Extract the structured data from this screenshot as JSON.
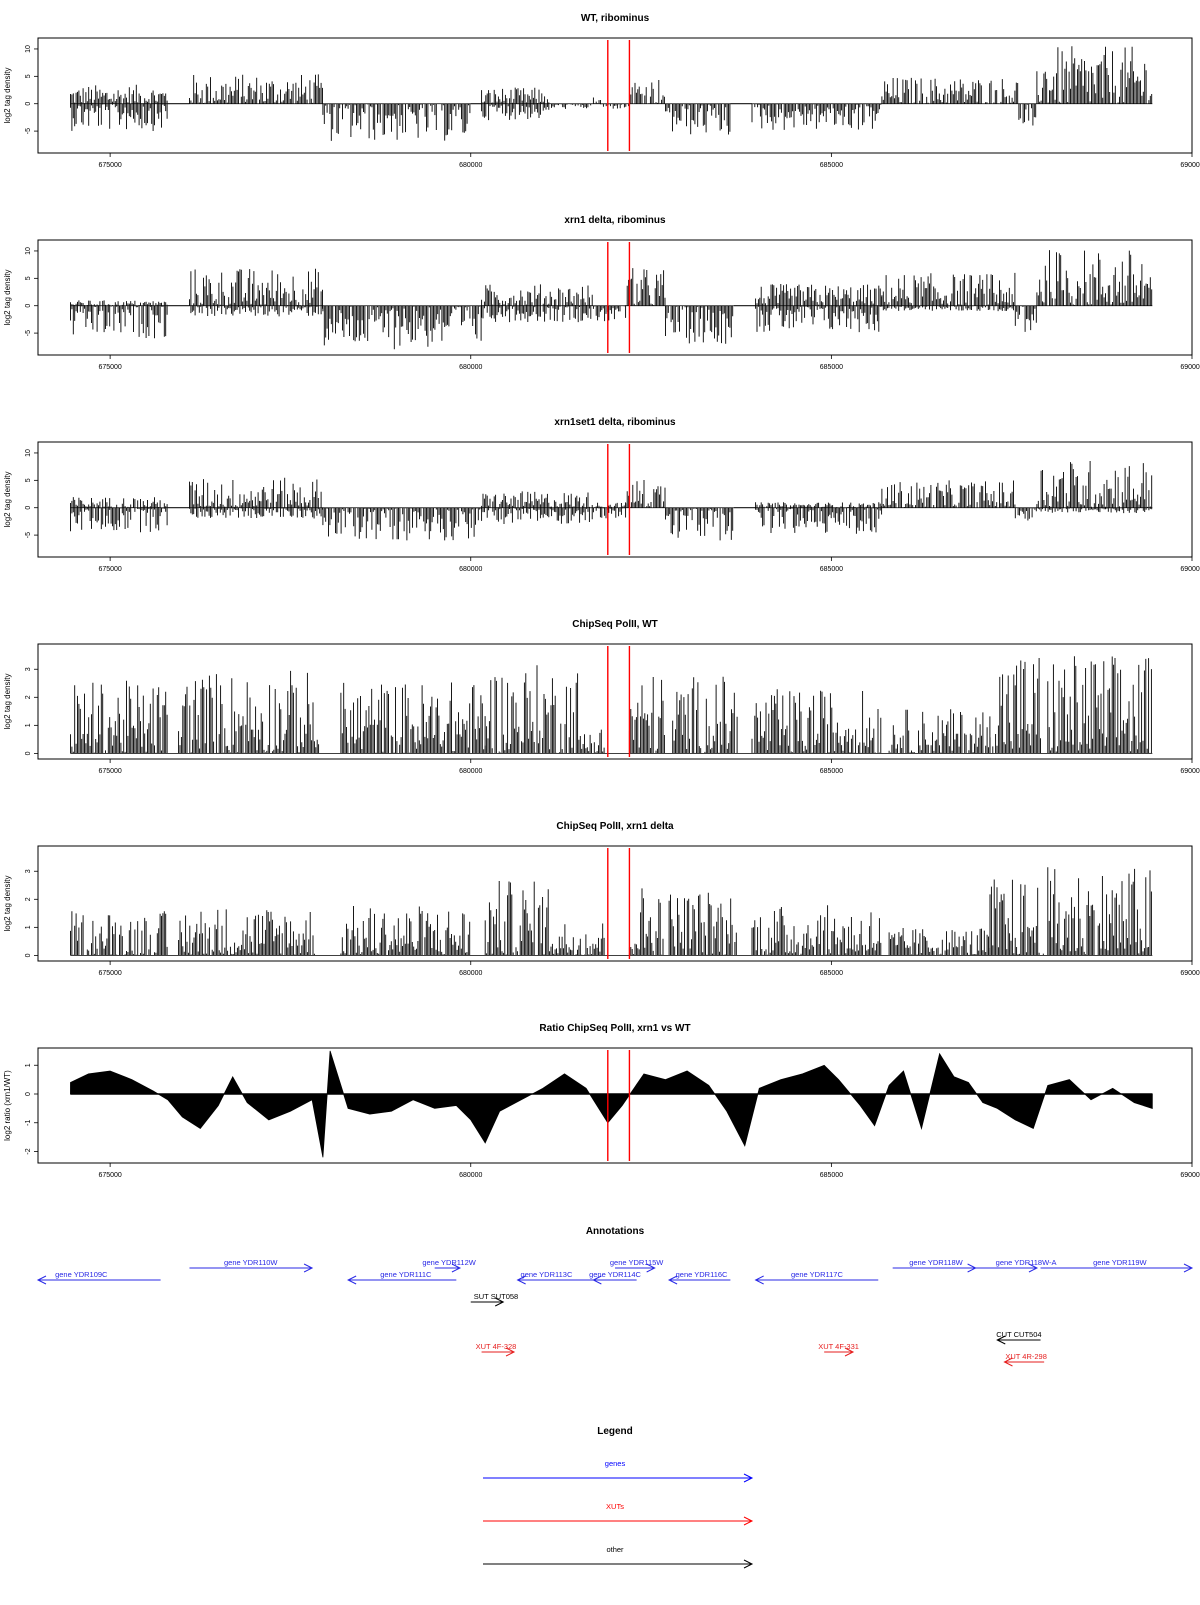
{
  "figure": {
    "annotations_title": "Annotations",
    "legend_title": "Legend",
    "marker_positions": [
      681900,
      682200
    ]
  },
  "chart_data": [
    {
      "type": "bar",
      "title": "WT, ribominus",
      "ylabel": "log2 tag density",
      "xlim": [
        674000,
        690000
      ],
      "ylim": [
        -9,
        12
      ],
      "xticks": [
        675000,
        680000,
        685000,
        690000
      ],
      "yticks": [
        -5,
        0,
        5,
        10
      ],
      "marker_color": "#ff0000",
      "bar_color": "#000000",
      "segments": [
        {
          "x0": 674450,
          "x1": 675800,
          "min": -5,
          "max": 3.5
        },
        {
          "x0": 675800,
          "x1": 676100,
          "min": 0,
          "max": 0
        },
        {
          "x0": 676100,
          "x1": 677950,
          "min": 0,
          "max": 5.5
        },
        {
          "x0": 677950,
          "x1": 680000,
          "min": -7,
          "max": 0
        },
        {
          "x0": 680000,
          "x1": 680150,
          "min": 0,
          "max": 0
        },
        {
          "x0": 680150,
          "x1": 681100,
          "min": -3,
          "max": 3
        },
        {
          "x0": 681100,
          "x1": 681700,
          "min": -1,
          "max": 0
        },
        {
          "x0": 681700,
          "x1": 681800,
          "min": 0,
          "max": 3
        },
        {
          "x0": 681800,
          "x1": 682200,
          "min": -1,
          "max": 0
        },
        {
          "x0": 682200,
          "x1": 682700,
          "min": 0,
          "max": 5
        },
        {
          "x0": 682700,
          "x1": 683600,
          "min": -6,
          "max": 0
        },
        {
          "x0": 683600,
          "x1": 683900,
          "min": 0,
          "max": 0
        },
        {
          "x0": 683900,
          "x1": 685700,
          "min": -5,
          "max": 0
        },
        {
          "x0": 685700,
          "x1": 687600,
          "min": 0,
          "max": 5
        },
        {
          "x0": 687600,
          "x1": 687850,
          "min": -4,
          "max": 0
        },
        {
          "x0": 687850,
          "x1": 689450,
          "min": 0,
          "max": 10.5
        }
      ]
    },
    {
      "type": "bar",
      "title": "xrn1 delta, ribominus",
      "ylabel": "log2 tag density",
      "xlim": [
        674000,
        690000
      ],
      "ylim": [
        -9,
        12
      ],
      "xticks": [
        675000,
        680000,
        685000,
        690000
      ],
      "yticks": [
        -5,
        0,
        5,
        10
      ],
      "marker_color": "#ff0000",
      "bar_color": "#000000",
      "segments": [
        {
          "x0": 674450,
          "x1": 675800,
          "min": -6,
          "max": 1
        },
        {
          "x0": 675800,
          "x1": 676100,
          "min": 0,
          "max": 0
        },
        {
          "x0": 676100,
          "x1": 677950,
          "min": -2,
          "max": 7
        },
        {
          "x0": 677950,
          "x1": 680150,
          "min": -8,
          "max": 0
        },
        {
          "x0": 680150,
          "x1": 681700,
          "min": -3,
          "max": 4
        },
        {
          "x0": 681700,
          "x1": 682150,
          "min": -3,
          "max": 0
        },
        {
          "x0": 682150,
          "x1": 682700,
          "min": 0,
          "max": 7
        },
        {
          "x0": 682700,
          "x1": 683650,
          "min": -7,
          "max": 0
        },
        {
          "x0": 683650,
          "x1": 683950,
          "min": 0,
          "max": 0
        },
        {
          "x0": 683950,
          "x1": 685700,
          "min": -5,
          "max": 4
        },
        {
          "x0": 685700,
          "x1": 687550,
          "min": -1,
          "max": 6
        },
        {
          "x0": 687550,
          "x1": 687850,
          "min": -5,
          "max": 0
        },
        {
          "x0": 687850,
          "x1": 689450,
          "min": 0,
          "max": 10.5
        }
      ]
    },
    {
      "type": "bar",
      "title": "xrn1set1 delta, ribominus",
      "ylabel": "log2 tag density",
      "xlim": [
        674000,
        690000
      ],
      "ylim": [
        -9,
        12
      ],
      "xticks": [
        675000,
        680000,
        685000,
        690000
      ],
      "yticks": [
        -5,
        0,
        5,
        10
      ],
      "marker_color": "#ff0000",
      "bar_color": "#000000",
      "segments": [
        {
          "x0": 674450,
          "x1": 675800,
          "min": -4.5,
          "max": 2
        },
        {
          "x0": 675800,
          "x1": 676100,
          "min": 0,
          "max": 0
        },
        {
          "x0": 676100,
          "x1": 677950,
          "min": -2,
          "max": 5.5
        },
        {
          "x0": 677950,
          "x1": 680150,
          "min": -6,
          "max": 0
        },
        {
          "x0": 680150,
          "x1": 681700,
          "min": -3,
          "max": 3
        },
        {
          "x0": 681700,
          "x1": 682150,
          "min": -2,
          "max": 1
        },
        {
          "x0": 682150,
          "x1": 682700,
          "min": 0,
          "max": 5.5
        },
        {
          "x0": 682700,
          "x1": 683650,
          "min": -6,
          "max": 0
        },
        {
          "x0": 683650,
          "x1": 683950,
          "min": 0,
          "max": 0
        },
        {
          "x0": 683950,
          "x1": 685700,
          "min": -5,
          "max": 1
        },
        {
          "x0": 685700,
          "x1": 687550,
          "min": 0,
          "max": 5
        },
        {
          "x0": 687550,
          "x1": 687850,
          "min": -4,
          "max": 0
        },
        {
          "x0": 687850,
          "x1": 689450,
          "min": -1,
          "max": 9
        }
      ]
    },
    {
      "type": "bar",
      "title": "ChipSeq PolII, WT",
      "ylabel": "log2 tag density",
      "xlim": [
        674000,
        690000
      ],
      "ylim": [
        -0.2,
        3.9
      ],
      "xticks": [
        675000,
        680000,
        685000,
        690000
      ],
      "yticks": [
        0,
        1,
        2,
        3
      ],
      "marker_color": "#ff0000",
      "bar_color": "#000000",
      "segments": [
        {
          "x0": 674450,
          "x1": 675800,
          "min": 0,
          "max": 2.6
        },
        {
          "x0": 675950,
          "x1": 677900,
          "min": 0,
          "max": 3
        },
        {
          "x0": 678200,
          "x1": 680200,
          "min": 0,
          "max": 2.6
        },
        {
          "x0": 680200,
          "x1": 681500,
          "min": 0,
          "max": 3.2
        },
        {
          "x0": 681500,
          "x1": 681850,
          "min": 0,
          "max": 1
        },
        {
          "x0": 682200,
          "x1": 682700,
          "min": 0,
          "max": 2.9
        },
        {
          "x0": 682800,
          "x1": 683700,
          "min": 0,
          "max": 2.8
        },
        {
          "x0": 683900,
          "x1": 685700,
          "min": 0,
          "max": 2.3
        },
        {
          "x0": 685800,
          "x1": 687200,
          "min": 0,
          "max": 1.6
        },
        {
          "x0": 687200,
          "x1": 687900,
          "min": 0,
          "max": 3.8
        },
        {
          "x0": 688000,
          "x1": 689450,
          "min": 0,
          "max": 3.6
        }
      ]
    },
    {
      "type": "bar",
      "title": "ChipSeq PolII, xrn1 delta",
      "ylabel": "log2 tag density",
      "xlim": [
        674000,
        690000
      ],
      "ylim": [
        -0.2,
        3.9
      ],
      "xticks": [
        675000,
        680000,
        685000,
        690000
      ],
      "yticks": [
        0,
        1,
        2,
        3
      ],
      "marker_color": "#ff0000",
      "bar_color": "#000000",
      "segments": [
        {
          "x0": 674450,
          "x1": 675800,
          "min": 0,
          "max": 1.6
        },
        {
          "x0": 675950,
          "x1": 677850,
          "min": 0,
          "max": 1.8
        },
        {
          "x0": 678200,
          "x1": 680000,
          "min": 0,
          "max": 1.8
        },
        {
          "x0": 680200,
          "x1": 681150,
          "min": 0,
          "max": 2.7
        },
        {
          "x0": 681150,
          "x1": 681850,
          "min": 0,
          "max": 1.3
        },
        {
          "x0": 682200,
          "x1": 682700,
          "min": 0,
          "max": 2.6
        },
        {
          "x0": 682750,
          "x1": 683700,
          "min": 0,
          "max": 2.4
        },
        {
          "x0": 683900,
          "x1": 685700,
          "min": 0,
          "max": 1.8
        },
        {
          "x0": 685800,
          "x1": 687200,
          "min": 0,
          "max": 1.0
        },
        {
          "x0": 687200,
          "x1": 687950,
          "min": 0,
          "max": 2.8
        },
        {
          "x0": 688000,
          "x1": 689450,
          "min": 0,
          "max": 3.2
        }
      ]
    },
    {
      "type": "area",
      "title": "Ratio ChipSeq PolII, xrn1 vs WT",
      "ylabel": "log2 ratio (xrn1/WT)",
      "xlim": [
        674000,
        690000
      ],
      "ylim": [
        -2.4,
        1.6
      ],
      "xticks": [
        675000,
        680000,
        685000,
        690000
      ],
      "yticks": [
        -2,
        -1,
        0,
        1
      ],
      "marker_color": "#ff0000",
      "fill_color": "#000000",
      "x": [
        674450,
        674700,
        675000,
        675300,
        675600,
        675800,
        676000,
        676250,
        676500,
        676700,
        676900,
        677200,
        677500,
        677800,
        677950,
        678050,
        678300,
        678600,
        678900,
        679200,
        679500,
        679800,
        680000,
        680200,
        680400,
        680700,
        681000,
        681300,
        681600,
        681900,
        682100,
        682400,
        682700,
        683000,
        683300,
        683550,
        683800,
        684000,
        684300,
        684600,
        684900,
        685100,
        685400,
        685600,
        685800,
        686000,
        686250,
        686500,
        686700,
        686900,
        687100,
        687300,
        687550,
        687800,
        688000,
        688300,
        688600,
        688900,
        689200,
        689450
      ],
      "y": [
        0.4,
        0.7,
        0.8,
        0.5,
        0.1,
        -0.2,
        -0.8,
        -1.2,
        -0.4,
        0.6,
        -0.3,
        -0.9,
        -0.6,
        -0.2,
        -2.2,
        1.5,
        -0.5,
        -0.7,
        -0.6,
        -0.2,
        -0.5,
        -0.4,
        -0.9,
        -1.7,
        -0.6,
        -0.2,
        0.2,
        0.7,
        0.2,
        -1.0,
        -0.4,
        0.7,
        0.5,
        0.8,
        0.3,
        -0.6,
        -1.8,
        0.2,
        0.5,
        0.7,
        1.0,
        0.5,
        -0.4,
        -1.1,
        0.3,
        0.8,
        -1.2,
        1.4,
        0.6,
        0.4,
        -0.3,
        -0.5,
        -0.9,
        -1.2,
        0.3,
        0.5,
        -0.2,
        0.2,
        -0.3,
        -0.5
      ]
    }
  ],
  "annotations": {
    "xlim": [
      674000,
      690000
    ],
    "items": [
      {
        "label": "gene YDR109C",
        "type": "gene",
        "strand": "-",
        "x0": 674000,
        "x1": 675700,
        "row": 2,
        "label_x": 674600
      },
      {
        "label": "gene YDR110W",
        "type": "gene",
        "strand": "+",
        "x0": 676100,
        "x1": 677800,
        "row": 1,
        "label_x": 676950
      },
      {
        "label": "gene YDR111C",
        "type": "gene",
        "strand": "-",
        "x0": 678300,
        "x1": 679800,
        "row": 2,
        "label_x": 679100
      },
      {
        "label": "gene YDR112W",
        "type": "gene",
        "strand": "+",
        "x0": 679500,
        "x1": 679850,
        "row": 1,
        "label_x": 679700
      },
      {
        "label": "gene YDR113C",
        "type": "gene",
        "strand": "-",
        "x0": 680650,
        "x1": 681700,
        "row": 2,
        "label_x": 681050
      },
      {
        "label": "gene YDR114C",
        "type": "gene",
        "strand": "-",
        "x0": 681700,
        "x1": 682300,
        "row": 2,
        "label_x": 682000
      },
      {
        "label": "gene YDR115W",
        "type": "gene",
        "strand": "+",
        "x0": 682000,
        "x1": 682550,
        "row": 1,
        "label_x": 682300
      },
      {
        "label": "gene YDR116C",
        "type": "gene",
        "strand": "-",
        "x0": 682750,
        "x1": 683600,
        "row": 2,
        "label_x": 683200
      },
      {
        "label": "gene YDR117C",
        "type": "gene",
        "strand": "-",
        "x0": 683950,
        "x1": 685650,
        "row": 2,
        "label_x": 684800
      },
      {
        "label": "gene YDR118W",
        "type": "gene",
        "strand": "+",
        "x0": 685850,
        "x1": 687000,
        "row": 1,
        "label_x": 686450
      },
      {
        "label": "gene YDR118W-A",
        "type": "gene",
        "strand": "+",
        "x0": 687000,
        "x1": 687850,
        "row": 1,
        "label_x": 687700
      },
      {
        "label": "gene YDR119W",
        "type": "gene",
        "strand": "+",
        "x0": 687900,
        "x1": 690000,
        "row": 1,
        "label_x": 689000
      },
      {
        "label": "SUT SUT058",
        "type": "other",
        "strand": "+",
        "x0": 680000,
        "x1": 680450,
        "row": 3,
        "label_x": 680350
      },
      {
        "label": "XUT 4F-328",
        "type": "XUT",
        "strand": "+",
        "x0": 680150,
        "x1": 680600,
        "row": 5,
        "label_x": 680350
      },
      {
        "label": "XUT 4F-331",
        "type": "XUT",
        "strand": "+",
        "x0": 684900,
        "x1": 685300,
        "row": 5,
        "label_x": 685100
      },
      {
        "label": "CUT CUT504",
        "type": "other",
        "strand": "-",
        "x0": 687300,
        "x1": 687900,
        "row": 4,
        "label_x": 687600
      },
      {
        "label": "XUT 4R-298",
        "type": "XUT",
        "strand": "-",
        "x0": 687400,
        "x1": 687950,
        "row": 6,
        "label_x": 687700
      }
    ]
  },
  "legend": {
    "entries": [
      {
        "label": "genes",
        "color": "#0000ff"
      },
      {
        "label": "XUTs",
        "color": "#ff0000"
      },
      {
        "label": "other",
        "color": "#000000"
      }
    ]
  }
}
